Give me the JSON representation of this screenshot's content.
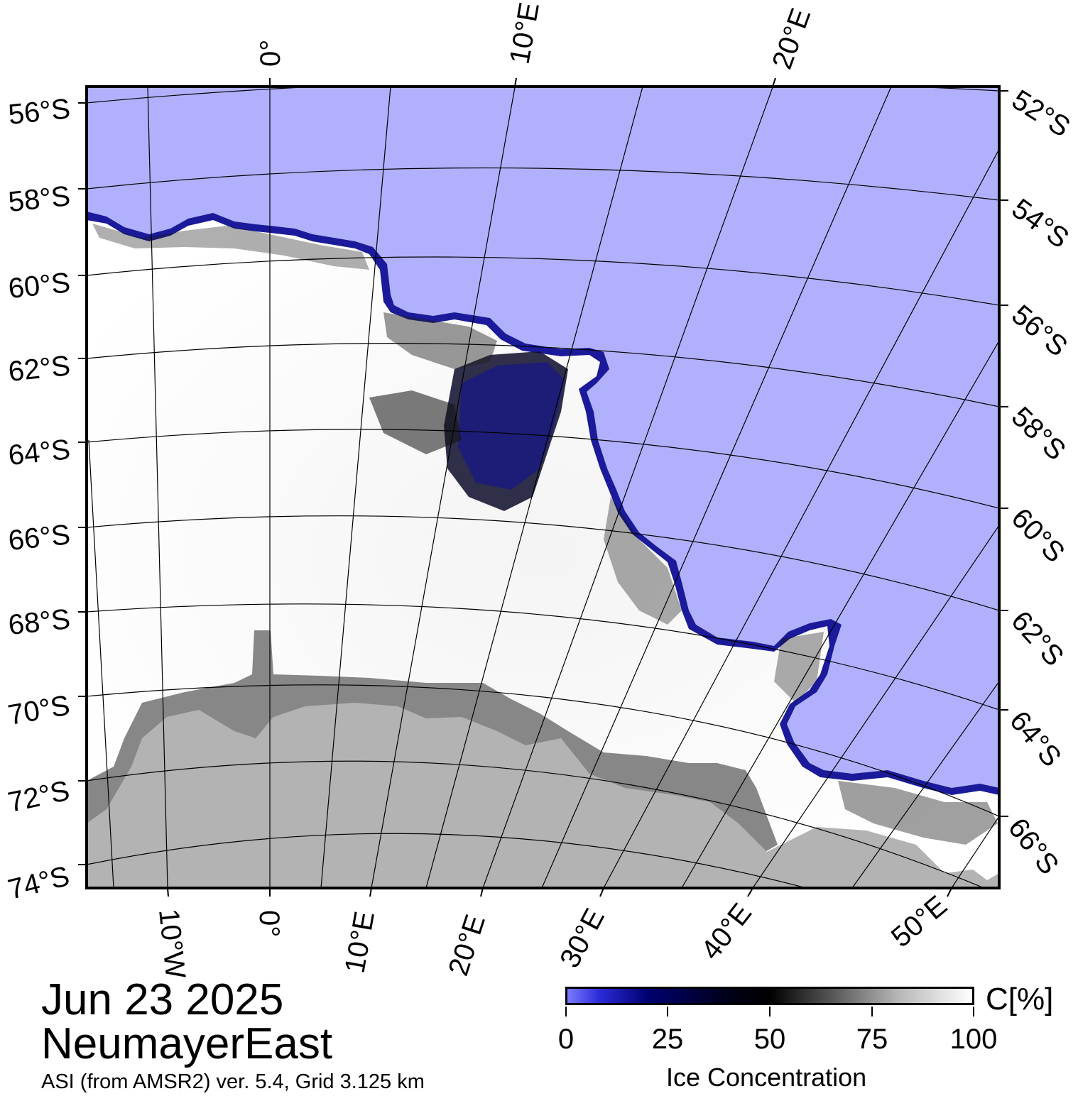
{
  "map": {
    "date": "Jun 23 2025",
    "region": "NeumayerEast",
    "source": "ASI (from AMSR2) ver. 5.4,  Grid 3.125 km",
    "colors": {
      "open_water": "#b0b0fc",
      "ice_full": "#ffffff",
      "ice_low": "#000060",
      "land": "#b3b3b3",
      "ice_shelf": "#878787",
      "frame": "#000000"
    },
    "top_longitude_labels": [
      "0°",
      "10°E",
      "20°E"
    ],
    "bottom_longitude_labels": [
      "10°W",
      "0°",
      "10°E",
      "20°E",
      "30°E",
      "40°E",
      "50°E"
    ],
    "left_latitude_labels": [
      "56°S",
      "58°S",
      "60°S",
      "62°S",
      "64°S",
      "66°S",
      "68°S",
      "70°S",
      "72°S",
      "74°S"
    ],
    "right_latitude_labels": [
      "52°S",
      "54°S",
      "56°S",
      "58°S",
      "60°S",
      "62°S",
      "64°S",
      "66°S"
    ]
  },
  "colorbar": {
    "unit": "C[%]",
    "title": "Ice Concentration",
    "ticks": [
      "0",
      "25",
      "50",
      "75",
      "100"
    ]
  }
}
